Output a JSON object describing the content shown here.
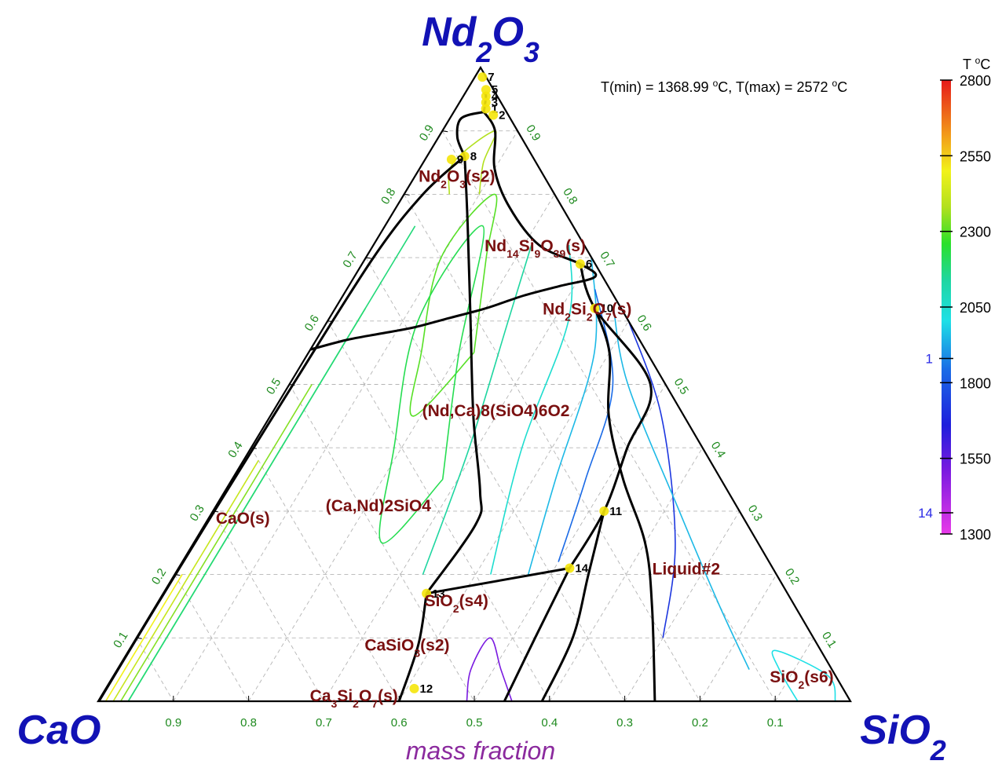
{
  "chart_data": {
    "type": "ternary-phase-diagram",
    "vertices": {
      "top": {
        "main": "Nd",
        "sub1": "2",
        "mid": "O",
        "sub2": "3"
      },
      "left": {
        "main": "CaO"
      },
      "right": {
        "main": "SiO",
        "sub1": "2"
      }
    },
    "axis_title": "mass fraction",
    "tmin_tmax": {
      "p1": "T(min) = 1368.99 ",
      "sup1": "o",
      "p2": "C, T(max) = 2572 ",
      "sup2": "o",
      "p3": "C"
    },
    "legend": {
      "title_pre": "T ",
      "title_sup": "o",
      "title_post": "C",
      "tmin": 1300,
      "tmax": 2800,
      "ticks": [
        "2800",
        "2550",
        "2300",
        "2050",
        "1800",
        "1550",
        "1300"
      ],
      "markers": [
        {
          "label": "1",
          "t": 1880
        },
        {
          "label": "14",
          "t": 1370
        }
      ]
    },
    "side_ticks": [
      "0.1",
      "0.2",
      "0.3",
      "0.4",
      "0.5",
      "0.6",
      "0.7",
      "0.8",
      "0.9"
    ],
    "base_ticks": [
      "0.9",
      "0.8",
      "0.7",
      "0.6",
      "0.5",
      "0.4",
      "0.3",
      "0.2",
      "0.1"
    ],
    "phase_labels": [
      {
        "id": "nd2o3-s2",
        "a": "Nd",
        "s1": "2",
        "b": "O",
        "s2": "3",
        "c": "(s2)",
        "nd": 0.82,
        "si": 0.06
      },
      {
        "id": "nd14si9o39",
        "a": "Nd",
        "s1": "14",
        "b": "Si",
        "s2": "9",
        "c": "O",
        "s3": "39",
        "d": "(s)",
        "nd": 0.71,
        "si": 0.22
      },
      {
        "id": "nd2si2o7",
        "a": "Nd",
        "s1": "2",
        "b": "Si",
        "s2": "2",
        "c": "O",
        "s3": "7",
        "d": "(s)",
        "nd": 0.61,
        "si": 0.34
      },
      {
        "id": "ndca-apatite",
        "a": "(Nd,Ca)8(SiO4)6O2",
        "nd": 0.45,
        "si": 0.3
      },
      {
        "id": "cand-silicate",
        "a": "(Ca,Nd)2SiO4",
        "nd": 0.3,
        "si": 0.22
      },
      {
        "id": "cao-s",
        "a": "CaO(s)",
        "nd": 0.28,
        "si": 0.05
      },
      {
        "id": "liquid2",
        "a": "Liquid#2",
        "nd": 0.2,
        "si": 0.68
      },
      {
        "id": "sio2-s4",
        "a": "SiO",
        "s1": "2",
        "b": "(s4)",
        "nd": 0.15,
        "si": 0.4
      },
      {
        "id": "casio3-s2",
        "a": "CaSiO",
        "s1": "3",
        "b": "(s2)",
        "nd": 0.08,
        "si": 0.37
      },
      {
        "id": "ca3si2o7",
        "a": "Ca",
        "s1": "3",
        "b": "Si",
        "s2": "2",
        "c": "O",
        "s3": "7",
        "d": "(s)",
        "nd": 0.0,
        "si": 0.34
      },
      {
        "id": "sio2-s6",
        "a": "SiO",
        "s1": "2",
        "b": "(s6)",
        "nd": 0.03,
        "si": 0.92
      }
    ],
    "invariant_points": [
      {
        "label": "1",
        "nd": 0.935,
        "si": 0.04
      },
      {
        "label": "2",
        "nd": 0.925,
        "si": 0.055
      },
      {
        "label": "3",
        "nd": 0.945,
        "si": 0.035
      },
      {
        "label": "4",
        "nd": 0.955,
        "si": 0.03
      },
      {
        "label": "5",
        "nd": 0.965,
        "si": 0.025
      },
      {
        "label": "6",
        "nd": 0.69,
        "si": 0.29
      },
      {
        "label": "7",
        "nd": 0.985,
        "si": 0.01
      },
      {
        "label": "8",
        "nd": 0.86,
        "si": 0.05
      },
      {
        "label": "9",
        "nd": 0.855,
        "si": 0.035
      },
      {
        "label": "10",
        "nd": 0.62,
        "si": 0.345
      },
      {
        "label": "11",
        "nd": 0.3,
        "si": 0.52
      },
      {
        "label": "12",
        "nd": 0.02,
        "si": 0.41
      },
      {
        "label": "13",
        "nd": 0.17,
        "si": 0.35
      },
      {
        "label": "14",
        "nd": 0.21,
        "si": 0.52
      }
    ],
    "phase_boundaries": [
      [
        [
          0.555,
          0
        ],
        [
          0.57,
          0.04
        ],
        [
          0.58,
          0.08
        ],
        [
          0.59,
          0.12
        ],
        [
          0.605,
          0.16
        ],
        [
          0.62,
          0.2
        ],
        [
          0.64,
          0.24
        ],
        [
          0.655,
          0.28
        ],
        [
          0.67,
          0.32
        ],
        [
          0.69,
          0.29
        ],
        [
          0.72,
          0.22
        ],
        [
          0.78,
          0.15
        ],
        [
          0.84,
          0.1
        ],
        [
          0.9,
          0.07
        ],
        [
          0.93,
          0.04
        ]
      ],
      [
        [
          0.93,
          0.04
        ],
        [
          0.955,
          0.03
        ],
        [
          0.96,
          0.025
        ]
      ],
      [
        [
          0.86,
          0.05
        ],
        [
          0.89,
          0.025
        ],
        [
          0.92,
          0.015
        ],
        [
          0.93,
          0.04
        ]
      ],
      [
        [
          0.86,
          0.05
        ],
        [
          0.75,
          0.11
        ],
        [
          0.6,
          0.19
        ],
        [
          0.45,
          0.27
        ],
        [
          0.33,
          0.34
        ],
        [
          0.28,
          0.36
        ],
        [
          0.17,
          0.35
        ]
      ],
      [
        [
          0.86,
          0.05
        ],
        [
          0.8,
          0.025
        ],
        [
          0.7,
          0.01
        ],
        [
          0.5,
          0.005
        ],
        [
          0.3,
          0.002
        ],
        [
          0.15,
          0.001
        ],
        [
          0.0,
          0.001
        ]
      ],
      [
        [
          0.17,
          0.35
        ],
        [
          0.09,
          0.38
        ],
        [
          0.0,
          0.4
        ]
      ],
      [
        [
          0.17,
          0.35
        ],
        [
          0.21,
          0.52
        ]
      ],
      [
        [
          0.21,
          0.52
        ],
        [
          0.3,
          0.52
        ],
        [
          0.4,
          0.5
        ],
        [
          0.5,
          0.48
        ],
        [
          0.62,
          0.345
        ],
        [
          0.69,
          0.29
        ]
      ],
      [
        [
          0.21,
          0.52
        ],
        [
          0.1,
          0.53
        ],
        [
          0.0,
          0.54
        ]
      ],
      [
        [
          0.62,
          0.345
        ],
        [
          0.55,
          0.4
        ],
        [
          0.45,
          0.45
        ],
        [
          0.35,
          0.52
        ],
        [
          0.25,
          0.6
        ],
        [
          0.15,
          0.66
        ],
        [
          0.0,
          0.74
        ]
      ],
      [
        [
          0.3,
          0.52
        ],
        [
          0.2,
          0.55
        ],
        [
          0.1,
          0.58
        ],
        [
          0.0,
          0.59
        ]
      ]
    ],
    "isotherms": [
      {
        "t": 2450,
        "pts": [
          [
            0.2,
            0.01
          ],
          [
            0.15,
            0.01
          ],
          [
            0.1,
            0.01
          ],
          [
            0.05,
            0.01
          ],
          [
            0.0,
            0.01
          ]
        ]
      },
      {
        "t": 2350,
        "pts": [
          [
            0.38,
            0.02
          ],
          [
            0.25,
            0.02
          ],
          [
            0.12,
            0.02
          ],
          [
            0.0,
            0.02
          ]
        ]
      },
      {
        "t": 2250,
        "pts": [
          [
            0.5,
            0.03
          ],
          [
            0.35,
            0.03
          ],
          [
            0.2,
            0.03
          ],
          [
            0.0,
            0.03
          ]
        ]
      },
      {
        "t": 2150,
        "pts": [
          [
            0.62,
            0.04
          ],
          [
            0.45,
            0.04
          ],
          [
            0.25,
            0.04
          ],
          [
            0.0,
            0.04
          ]
        ]
      },
      {
        "t": 2050,
        "pts": [
          [
            0.75,
            0.04
          ],
          [
            0.55,
            0.04
          ],
          [
            0.3,
            0.04
          ],
          [
            0.0,
            0.04
          ]
        ]
      },
      {
        "t": 2300,
        "pts": [
          [
            0.8,
            0.1
          ],
          [
            0.85,
            0.08
          ],
          [
            0.9,
            0.07
          ],
          [
            0.85,
            0.04
          ],
          [
            0.8,
            0.06
          ]
        ]
      },
      {
        "t": 2200,
        "pts": [
          [
            0.55,
            0.22
          ],
          [
            0.7,
            0.16
          ],
          [
            0.8,
            0.12
          ],
          [
            0.7,
            0.1
          ],
          [
            0.55,
            0.15
          ],
          [
            0.45,
            0.19
          ],
          [
            0.55,
            0.22
          ]
        ]
      },
      {
        "t": 2100,
        "pts": [
          [
            0.35,
            0.28
          ],
          [
            0.55,
            0.2
          ],
          [
            0.75,
            0.13
          ],
          [
            0.6,
            0.12
          ],
          [
            0.4,
            0.19
          ],
          [
            0.25,
            0.25
          ],
          [
            0.35,
            0.28
          ]
        ]
      },
      {
        "t": 2000,
        "pts": [
          [
            0.2,
            0.33
          ],
          [
            0.4,
            0.29
          ],
          [
            0.6,
            0.24
          ],
          [
            0.72,
            0.21
          ]
        ]
      },
      {
        "t": 1900,
        "pts": [
          [
            0.2,
            0.42
          ],
          [
            0.4,
            0.36
          ],
          [
            0.6,
            0.32
          ],
          [
            0.72,
            0.26
          ]
        ]
      },
      {
        "t": 1800,
        "pts": [
          [
            0.2,
            0.47
          ],
          [
            0.35,
            0.43
          ],
          [
            0.55,
            0.38
          ],
          [
            0.7,
            0.3
          ]
        ]
      },
      {
        "t": 1700,
        "pts": [
          [
            0.22,
            0.5
          ],
          [
            0.35,
            0.47
          ],
          [
            0.5,
            0.43
          ],
          [
            0.65,
            0.33
          ]
        ]
      },
      {
        "t": 1600,
        "pts": [
          [
            0.1,
            0.7
          ],
          [
            0.25,
            0.64
          ],
          [
            0.45,
            0.52
          ],
          [
            0.6,
            0.4
          ]
        ]
      },
      {
        "t": 1800,
        "pts": [
          [
            0.05,
            0.84
          ],
          [
            0.15,
            0.75
          ],
          [
            0.3,
            0.62
          ],
          [
            0.5,
            0.45
          ],
          [
            0.62,
            0.37
          ]
        ]
      },
      {
        "t": 1850,
        "pts": [
          [
            0.0,
            0.93
          ],
          [
            0.05,
            0.88
          ],
          [
            0.08,
            0.86
          ],
          [
            0.04,
            0.95
          ],
          [
            0.0,
            0.98
          ]
        ]
      },
      {
        "t": 1400,
        "pts": [
          [
            0.0,
            0.55
          ],
          [
            0.05,
            0.51
          ],
          [
            0.1,
            0.47
          ],
          [
            0.05,
            0.47
          ],
          [
            0.0,
            0.49
          ]
        ]
      }
    ]
  }
}
